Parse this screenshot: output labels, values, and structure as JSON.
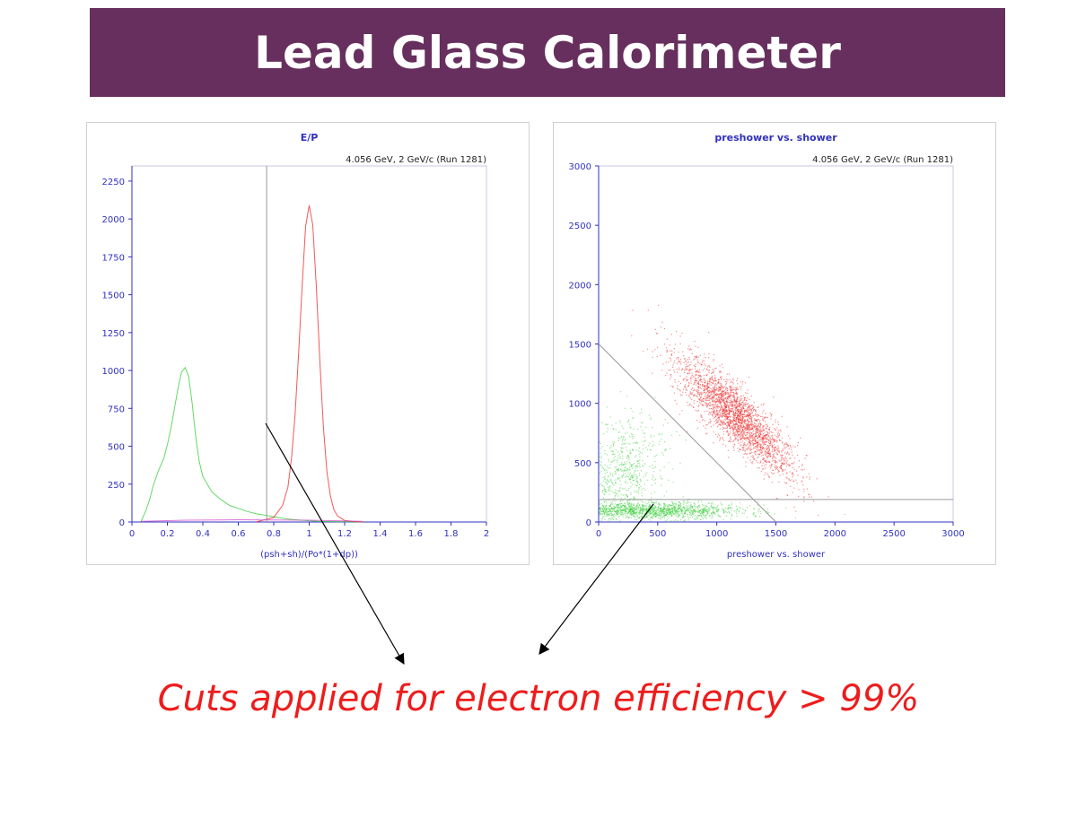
{
  "slide": {
    "title": "Lead Glass Calorimeter",
    "caption": "Cuts applied for electron efficiency > 99%",
    "colors": {
      "title_bar": "#662f5d",
      "caption": "#ee1c1c",
      "axis": "#3030c0",
      "electron": "#ee2020",
      "pion": "#30cc30",
      "cut_line": "#999999"
    }
  },
  "chart_data": [
    {
      "type": "line",
      "title": "E/P",
      "annotation": "4.056 GeV, 2 GeV/c  (Run 1281)",
      "xlabel": "(psh+sh)/(Po*(1+dp))",
      "ylabel": "",
      "xlim": [
        0,
        2
      ],
      "ylim": [
        0,
        2350
      ],
      "x_ticks": [
        0,
        0.2,
        0.4,
        0.6,
        0.8,
        1,
        1.2,
        1.4,
        1.6,
        1.8,
        2
      ],
      "x_tick_labels": [
        "0",
        "0.2",
        "0.4",
        "0.6",
        "0.8",
        "1",
        "1.2",
        "1.4",
        "1.6",
        "1.8",
        "2"
      ],
      "y_ticks": [
        0,
        250,
        500,
        750,
        1000,
        1250,
        1500,
        1750,
        2000,
        2250
      ],
      "y_tick_labels": [
        "0",
        "250",
        "500",
        "750",
        "1000",
        "1250",
        "1500",
        "1750",
        "2000",
        "2250"
      ],
      "cut_x": 0.76,
      "series": [
        {
          "color": "#30cc30",
          "x": [
            0.05,
            0.08,
            0.1,
            0.12,
            0.15,
            0.18,
            0.2,
            0.22,
            0.24,
            0.26,
            0.28,
            0.3,
            0.32,
            0.34,
            0.36,
            0.38,
            0.4,
            0.45,
            0.5,
            0.55,
            0.6,
            0.65,
            0.7,
            0.75,
            0.8,
            0.85,
            0.9,
            0.95,
            1.0,
            1.05,
            1.1,
            1.2,
            1.3
          ],
          "y": [
            0,
            80,
            150,
            240,
            340,
            420,
            510,
            620,
            750,
            880,
            990,
            1020,
            960,
            780,
            560,
            400,
            300,
            200,
            150,
            110,
            90,
            70,
            55,
            45,
            35,
            25,
            18,
            12,
            8,
            5,
            3,
            1,
            0
          ]
        },
        {
          "color": "#ee2020",
          "x": [
            0.7,
            0.8,
            0.85,
            0.88,
            0.9,
            0.92,
            0.94,
            0.96,
            0.98,
            1.0,
            1.02,
            1.04,
            1.06,
            1.08,
            1.1,
            1.12,
            1.14,
            1.16,
            1.2,
            1.25,
            1.3
          ],
          "y": [
            0,
            30,
            110,
            230,
            420,
            700,
            1100,
            1550,
            1950,
            2090,
            1960,
            1560,
            1060,
            630,
            330,
            170,
            80,
            40,
            10,
            3,
            0
          ]
        },
        {
          "color": "#cc44cc",
          "x": [
            0.05,
            0.3,
            0.6,
            1.0,
            1.3
          ],
          "y": [
            5,
            12,
            15,
            12,
            5
          ]
        }
      ]
    },
    {
      "type": "scatter",
      "title": "preshower vs. shower",
      "annotation": "4.056 GeV, 2 GeV/c  (Run 1281)",
      "xlabel": "preshower vs. shower",
      "ylabel": "",
      "xlim": [
        0,
        3000
      ],
      "ylim": [
        0,
        3000
      ],
      "x_ticks": [
        0,
        500,
        1000,
        1500,
        2000,
        2500,
        3000
      ],
      "x_tick_labels": [
        "0",
        "500",
        "1000",
        "1500",
        "2000",
        "2500",
        "3000"
      ],
      "y_ticks": [
        0,
        500,
        1000,
        1500,
        2000,
        2500,
        3000
      ],
      "y_tick_labels": [
        "0",
        "500",
        "1000",
        "1500",
        "2000",
        "2500",
        "3000"
      ],
      "cut_lines": [
        {
          "from": [
            0,
            1500
          ],
          "to": [
            1500,
            0
          ]
        },
        {
          "from": [
            0,
            190
          ],
          "to": [
            3000,
            190
          ]
        }
      ],
      "series": [
        {
          "color": "#ee2020",
          "center": [
            1150,
            900
          ],
          "along": [
            1,
            -1
          ],
          "spread_along": 330,
          "spread_across": 95,
          "points": 2600
        },
        {
          "color": "#30cc30",
          "center": [
            450,
            100
          ],
          "along": [
            1,
            0
          ],
          "spread_along": 380,
          "spread_across": 35,
          "points": 1400
        },
        {
          "color": "#30cc30",
          "center": [
            200,
            400
          ],
          "along": [
            0.4,
            1
          ],
          "spread_along": 260,
          "spread_across": 160,
          "points": 700
        }
      ]
    }
  ]
}
